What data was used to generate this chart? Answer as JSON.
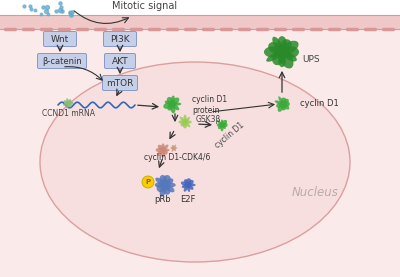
{
  "bg_color": "#ffffff",
  "membrane_color": "#f0c8c8",
  "membrane_border": "#d89898",
  "cell_fill": "#f7dede",
  "box_fill": "#c5cfe8",
  "box_edge": "#8898c8",
  "green_dark": "#2a8a2a",
  "green_med": "#3aaa3a",
  "green_light": "#66bb44",
  "blue_protein": "#5577bb",
  "blue_dark": "#334488",
  "pink_protein": "#cc8877",
  "salmon": "#e8aa99",
  "yellow_phospho": "#ffcc00",
  "arrow_color": "#333333",
  "text_color": "#333333",
  "signal_dot": "#66aacc",
  "wavy_color": "#3366bb",
  "wavy_green": "#66aa66",
  "labels": {
    "mitotic": "Mitotic signal",
    "wnt": "Wnt",
    "pi3k": "PI3K",
    "bcatenin": "β-catenin",
    "akt": "AKT",
    "mtor": "mTOR",
    "ccnd1": "CCND1 mRNA",
    "cyclinD1_protein": "cyclin D1\nprotein",
    "cyclinD1": "cyclin D1",
    "ups": "UPS",
    "gsk3b": "GSK3β",
    "cyclinD1_diag": "cyclin D1",
    "cyclinD1_cdk": "cyclin D1-CDK4/6",
    "prb": "pRb",
    "e2f": "E2F",
    "nucleus": "Nucleus"
  }
}
